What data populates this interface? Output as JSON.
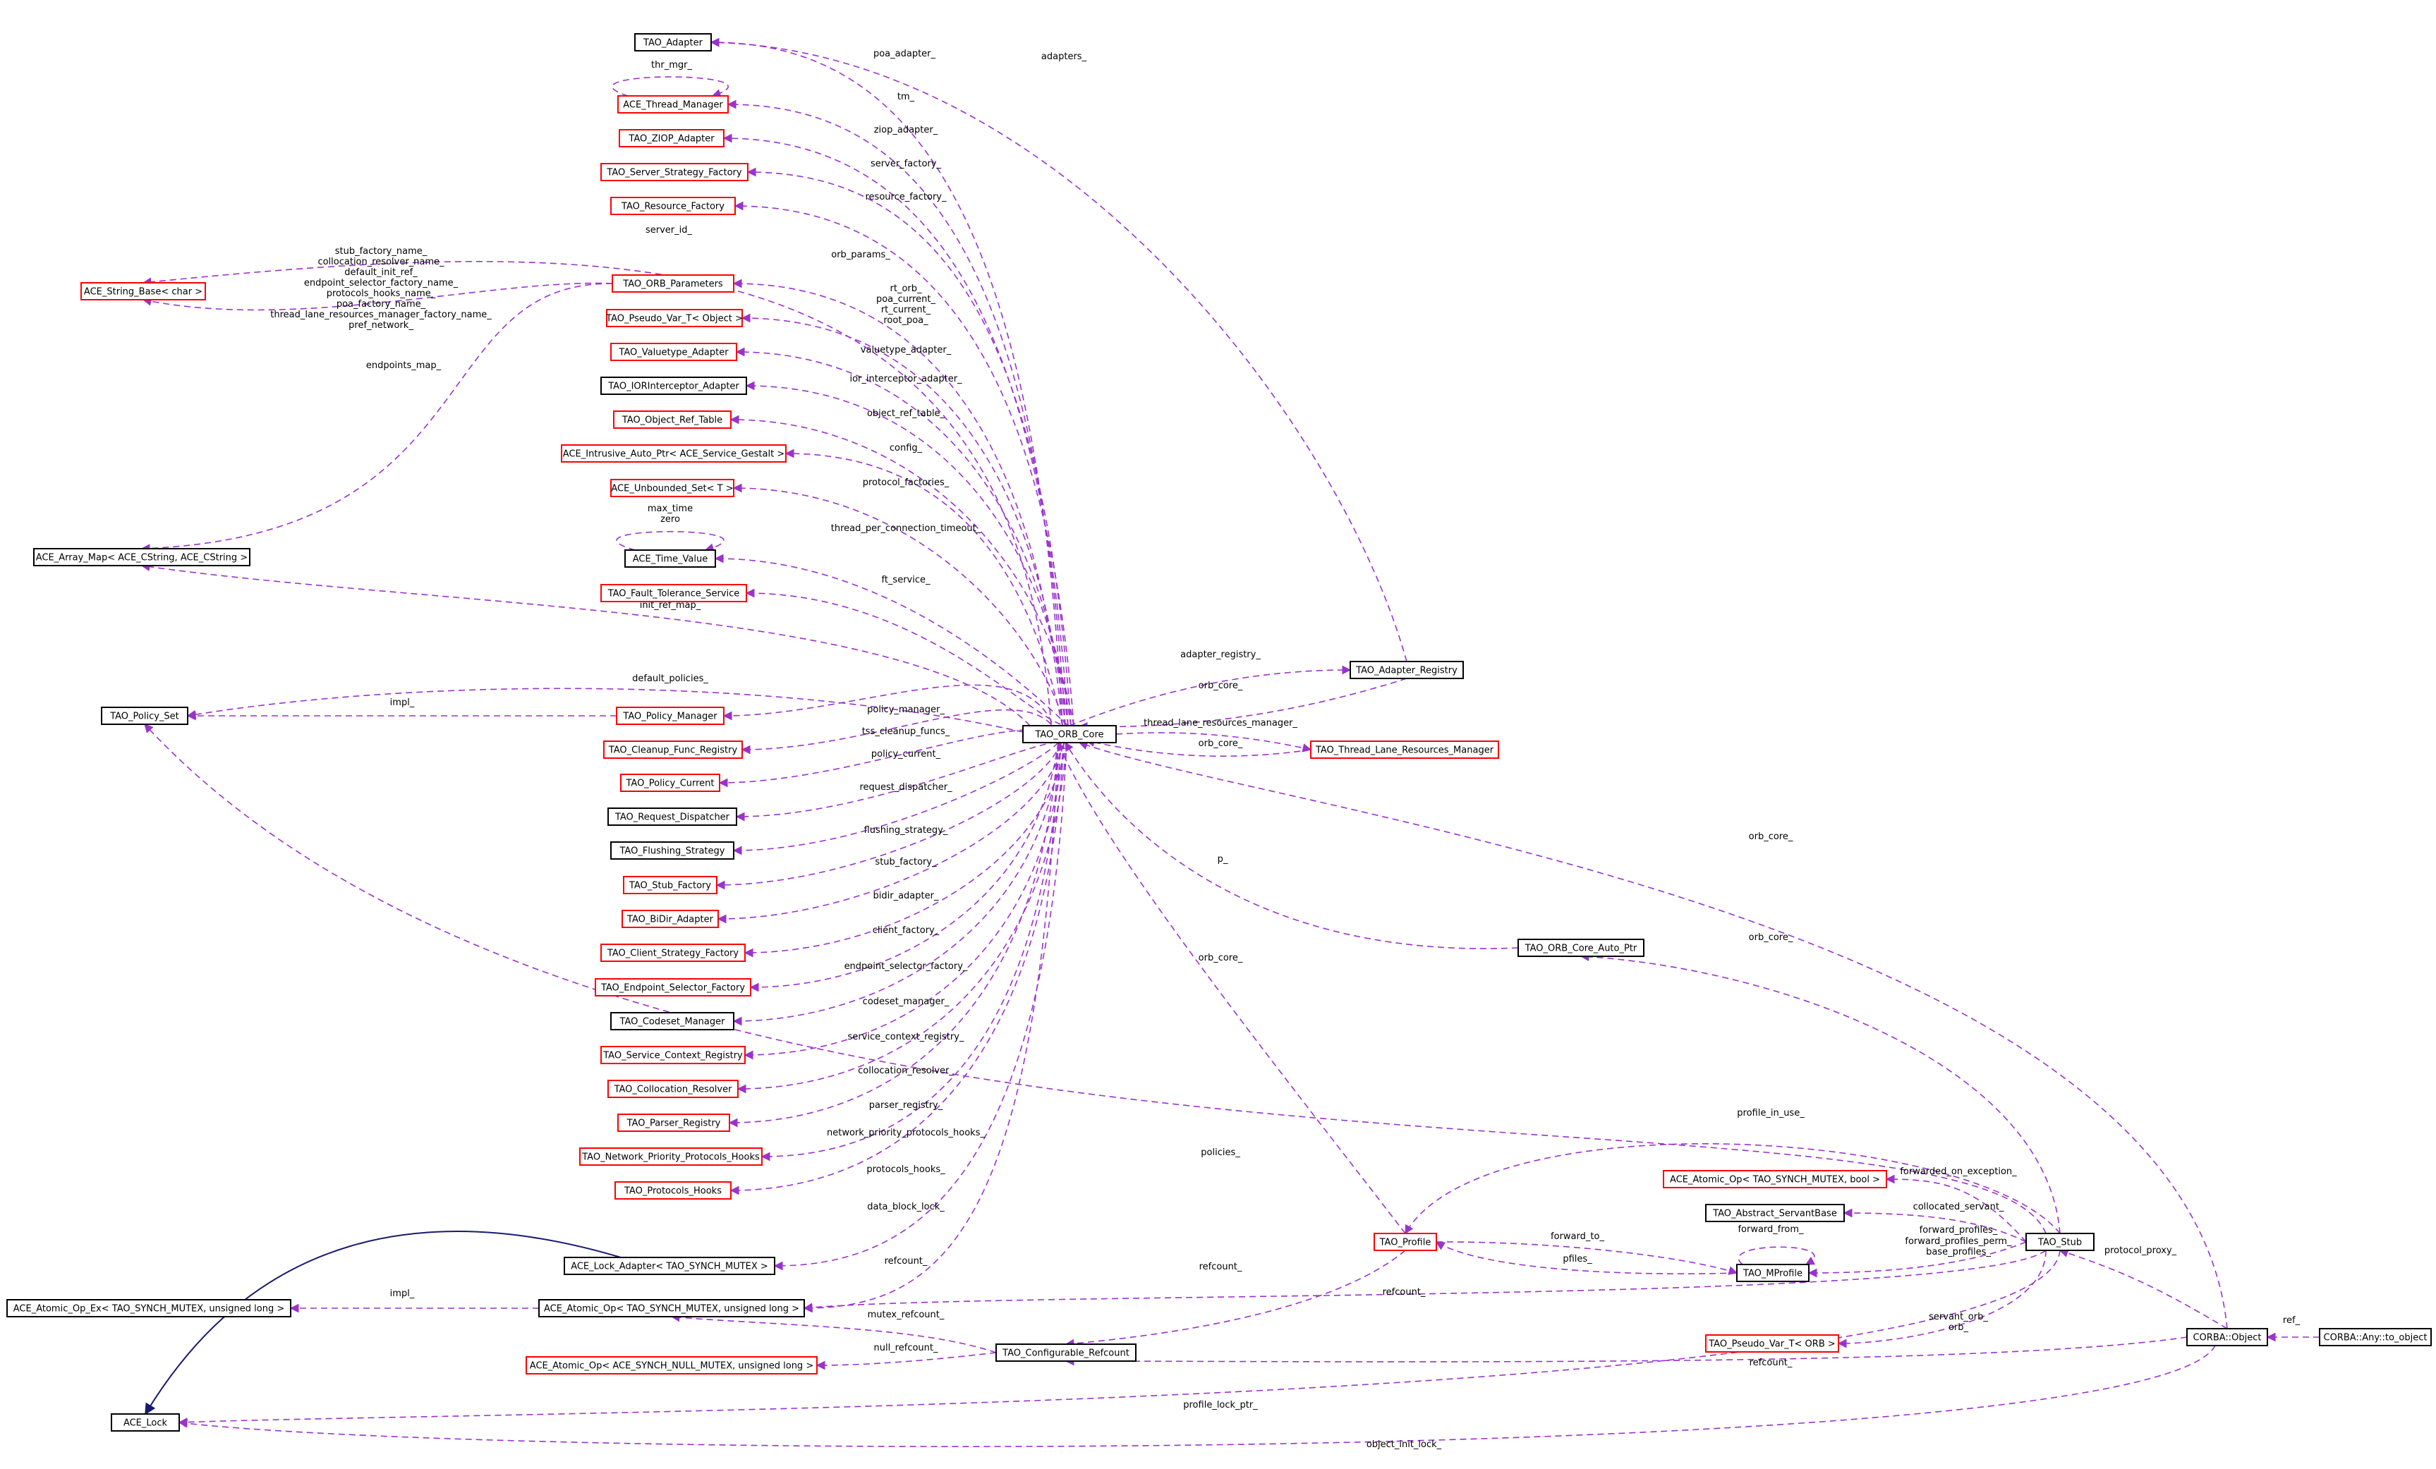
{
  "colors": {
    "edge": "#9a32cd",
    "inherit": "#191970",
    "red_border": "#ff0000",
    "black_border": "#000000",
    "selected_fill": "#bfbfbf"
  },
  "nodes": [
    {
      "id": "tao_adapter",
      "label": "TAO_Adapter",
      "border": "black"
    },
    {
      "id": "ace_thread_manager",
      "label": "ACE_Thread_Manager",
      "border": "red"
    },
    {
      "id": "tao_ziop_adapter",
      "label": "TAO_ZIOP_Adapter",
      "border": "red"
    },
    {
      "id": "tao_server_strategy_factory",
      "label": "TAO_Server_Strategy_Factory",
      "border": "red"
    },
    {
      "id": "tao_resource_factory",
      "label": "TAO_Resource_Factory",
      "border": "red"
    },
    {
      "id": "ace_string_base",
      "label": "ACE_String_Base< char >",
      "border": "red"
    },
    {
      "id": "tao_orb_parameters",
      "label": "TAO_ORB_Parameters",
      "border": "red"
    },
    {
      "id": "tao_pseudo_var_object",
      "label": "TAO_Pseudo_Var_T< Object >",
      "border": "red"
    },
    {
      "id": "tao_valuetype_adapter",
      "label": "TAO_Valuetype_Adapter",
      "border": "red"
    },
    {
      "id": "tao_iorinterceptor_adapter",
      "label": "TAO_IORInterceptor_Adapter",
      "border": "black"
    },
    {
      "id": "tao_object_ref_table",
      "label": "TAO_Object_Ref_Table",
      "border": "red"
    },
    {
      "id": "ace_intrusive_auto_ptr",
      "label": "ACE_Intrusive_Auto_Ptr< ACE_Service_Gestalt >",
      "border": "red"
    },
    {
      "id": "ace_unbounded_set",
      "label": "ACE_Unbounded_Set< T >",
      "border": "red"
    },
    {
      "id": "ace_array_map",
      "label": "ACE_Array_Map< ACE_CString, ACE_CString >",
      "border": "black"
    },
    {
      "id": "ace_time_value",
      "label": "ACE_Time_Value",
      "border": "black"
    },
    {
      "id": "tao_fault_tolerance_service",
      "label": "TAO_Fault_Tolerance_Service",
      "border": "red"
    },
    {
      "id": "tao_policy_set",
      "label": "TAO_Policy_Set",
      "border": "black"
    },
    {
      "id": "tao_policy_manager",
      "label": "TAO_Policy_Manager",
      "border": "red"
    },
    {
      "id": "tao_cleanup_func_registry",
      "label": "TAO_Cleanup_Func_Registry",
      "border": "red"
    },
    {
      "id": "tao_policy_current",
      "label": "TAO_Policy_Current",
      "border": "red"
    },
    {
      "id": "tao_request_dispatcher",
      "label": "TAO_Request_Dispatcher",
      "border": "black"
    },
    {
      "id": "tao_flushing_strategy",
      "label": "TAO_Flushing_Strategy",
      "border": "black"
    },
    {
      "id": "tao_stub_factory",
      "label": "TAO_Stub_Factory",
      "border": "red"
    },
    {
      "id": "tao_bidir_adapter",
      "label": "TAO_BiDir_Adapter",
      "border": "red"
    },
    {
      "id": "tao_client_strategy_factory",
      "label": "TAO_Client_Strategy_Factory",
      "border": "red"
    },
    {
      "id": "tao_endpoint_selector_factory",
      "label": "TAO_Endpoint_Selector_Factory",
      "border": "red"
    },
    {
      "id": "tao_codeset_manager",
      "label": "TAO_Codeset_Manager",
      "border": "black"
    },
    {
      "id": "tao_service_context_registry",
      "label": "TAO_Service_Context_Registry",
      "border": "red"
    },
    {
      "id": "tao_collocation_resolver",
      "label": "TAO_Collocation_Resolver",
      "border": "red"
    },
    {
      "id": "tao_parser_registry",
      "label": "TAO_Parser_Registry",
      "border": "red"
    },
    {
      "id": "tao_network_priority_protocols_hooks",
      "label": "TAO_Network_Priority_Protocols_Hooks",
      "border": "red"
    },
    {
      "id": "tao_protocols_hooks",
      "label": "TAO_Protocols_Hooks",
      "border": "red"
    },
    {
      "id": "ace_lock_adapter",
      "label": "ACE_Lock_Adapter< TAO_SYNCH_MUTEX >",
      "border": "black"
    },
    {
      "id": "ace_atomic_op_ex",
      "label": "ACE_Atomic_Op_Ex< TAO_SYNCH_MUTEX, unsigned long >",
      "border": "black"
    },
    {
      "id": "ace_atomic_op_ulong",
      "label": "ACE_Atomic_Op< TAO_SYNCH_MUTEX, unsigned long >",
      "border": "black"
    },
    {
      "id": "ace_atomic_op_null",
      "label": "ACE_Atomic_Op< ACE_SYNCH_NULL_MUTEX, unsigned long >",
      "border": "red"
    },
    {
      "id": "ace_lock",
      "label": "ACE_Lock",
      "border": "black"
    },
    {
      "id": "tao_orb_core",
      "label": "TAO_ORB_Core",
      "border": "black"
    },
    {
      "id": "tao_adapter_registry",
      "label": "TAO_Adapter_Registry",
      "border": "black"
    },
    {
      "id": "tao_thread_lane_resources_manager",
      "label": "TAO_Thread_Lane_Resources_Manager",
      "border": "red"
    },
    {
      "id": "tao_orb_core_auto_ptr",
      "label": "TAO_ORB_Core_Auto_Ptr",
      "border": "black"
    },
    {
      "id": "tao_profile",
      "label": "TAO_Profile",
      "border": "red"
    },
    {
      "id": "tao_configurable_refcount",
      "label": "TAO_Configurable_Refcount",
      "border": "black"
    },
    {
      "id": "ace_atomic_op_bool",
      "label": "ACE_Atomic_Op< TAO_SYNCH_MUTEX, bool >",
      "border": "red"
    },
    {
      "id": "tao_abstract_servantbase",
      "label": "TAO_Abstract_ServantBase",
      "border": "black"
    },
    {
      "id": "tao_mprofile",
      "label": "TAO_MProfile",
      "border": "black"
    },
    {
      "id": "tao_pseudo_var_orb",
      "label": "TAO_Pseudo_Var_T< ORB >",
      "border": "red"
    },
    {
      "id": "tao_stub",
      "label": "TAO_Stub",
      "border": "black"
    },
    {
      "id": "corba_object",
      "label": "CORBA::Object",
      "border": "black"
    },
    {
      "id": "corba_any_to_object",
      "label": "CORBA::Any::to_object",
      "border": "black",
      "selected": true
    }
  ],
  "edge_labels": [
    {
      "id": "poa_adapter",
      "text": "poa_adapter_"
    },
    {
      "id": "adapters",
      "text": "adapters_"
    },
    {
      "id": "thr_mgr",
      "text": "thr_mgr_"
    },
    {
      "id": "tm",
      "text": "tm_"
    },
    {
      "id": "ziop_adapter",
      "text": "ziop_adapter_"
    },
    {
      "id": "server_factory",
      "text": "server_factory_"
    },
    {
      "id": "resource_factory",
      "text": "resource_factory_"
    },
    {
      "id": "server_id",
      "text": "server_id_"
    },
    {
      "id": "orb_params",
      "text": "orb_params_"
    },
    {
      "id": "sb1",
      "text": "stub_factory_name_"
    },
    {
      "id": "sb2",
      "text": "collocation_resolver_name_"
    },
    {
      "id": "sb3",
      "text": "default_init_ref_"
    },
    {
      "id": "sb4",
      "text": "endpoint_selector_factory_name_"
    },
    {
      "id": "sb5",
      "text": "protocols_hooks_name_"
    },
    {
      "id": "sb6",
      "text": "poa_factory_name_"
    },
    {
      "id": "sb7",
      "text": "thread_lane_resources_manager_factory_name_"
    },
    {
      "id": "sb8",
      "text": "pref_network_"
    },
    {
      "id": "pv1",
      "text": "rt_orb_"
    },
    {
      "id": "pv2",
      "text": "poa_current_"
    },
    {
      "id": "pv3",
      "text": "rt_current_"
    },
    {
      "id": "pv4",
      "text": "root_poa_"
    },
    {
      "id": "endpoints_map",
      "text": "endpoints_map_"
    },
    {
      "id": "valuetype_adapter",
      "text": "valuetype_adapter_"
    },
    {
      "id": "ior_interceptor_adapter",
      "text": "ior_interceptor_adapter_"
    },
    {
      "id": "object_ref_table",
      "text": "object_ref_table_"
    },
    {
      "id": "config",
      "text": "config_"
    },
    {
      "id": "protocol_factories",
      "text": "protocol_factories_"
    },
    {
      "id": "max_time",
      "text": "max_time"
    },
    {
      "id": "zero",
      "text": "zero"
    },
    {
      "id": "thread_per_connection_timeout",
      "text": "thread_per_connection_timeout_"
    },
    {
      "id": "ft_service",
      "text": "ft_service_"
    },
    {
      "id": "init_ref_map",
      "text": "init_ref_map_"
    },
    {
      "id": "default_policies",
      "text": "default_policies_"
    },
    {
      "id": "impl1",
      "text": "impl_"
    },
    {
      "id": "policy_manager",
      "text": "policy_manager_"
    },
    {
      "id": "tss_cleanup_funcs",
      "text": "tss_cleanup_funcs_"
    },
    {
      "id": "policy_current",
      "text": "policy_current_"
    },
    {
      "id": "request_dispatcher",
      "text": "request_dispatcher_"
    },
    {
      "id": "flushing_strategy",
      "text": "flushing_strategy_"
    },
    {
      "id": "stub_factory",
      "text": "stub_factory_"
    },
    {
      "id": "bidir_adapter",
      "text": "bidir_adapter_"
    },
    {
      "id": "client_factory",
      "text": "client_factory_"
    },
    {
      "id": "endpoint_selector_factory",
      "text": "endpoint_selector_factory_"
    },
    {
      "id": "codeset_manager",
      "text": "codeset_manager_"
    },
    {
      "id": "service_context_registry",
      "text": "service_context_registry_"
    },
    {
      "id": "collocation_resolver",
      "text": "collocation_resolver_"
    },
    {
      "id": "parser_registry",
      "text": "parser_registry_"
    },
    {
      "id": "network_priority_protocols_hooks",
      "text": "network_priority_protocols_hooks_"
    },
    {
      "id": "protocols_hooks",
      "text": "protocols_hooks_"
    },
    {
      "id": "data_block_lock",
      "text": "data_block_lock_"
    },
    {
      "id": "refcount1",
      "text": "refcount_"
    },
    {
      "id": "impl2",
      "text": "impl_"
    },
    {
      "id": "mutex_refcount",
      "text": "mutex_refcount_"
    },
    {
      "id": "null_refcount",
      "text": "null_refcount_"
    },
    {
      "id": "adapter_registry",
      "text": "adapter_registry_"
    },
    {
      "id": "orb_core1",
      "text": "orb_core_"
    },
    {
      "id": "thread_lane_resources_manager",
      "text": "thread_lane_resources_manager_"
    },
    {
      "id": "orb_core2",
      "text": "orb_core_"
    },
    {
      "id": "orb_core3",
      "text": "orb_core_"
    },
    {
      "id": "p",
      "text": "p_"
    },
    {
      "id": "orb_core4",
      "text": "orb_core_"
    },
    {
      "id": "orb_core5",
      "text": "orb_core_"
    },
    {
      "id": "profile_in_use",
      "text": "profile_in_use_"
    },
    {
      "id": "policies",
      "text": "policies_"
    },
    {
      "id": "forwarded_on_exception",
      "text": "forwarded_on_exception_"
    },
    {
      "id": "collocated_servant",
      "text": "collocated_servant_"
    },
    {
      "id": "forward_from",
      "text": "forward_from_"
    },
    {
      "id": "forward_to",
      "text": "forward_to_"
    },
    {
      "id": "pfiles",
      "text": "pfiles_"
    },
    {
      "id": "fp1",
      "text": "forward_profiles_"
    },
    {
      "id": "fp2",
      "text": "forward_profiles_perm_"
    },
    {
      "id": "fp3",
      "text": "base_profiles_"
    },
    {
      "id": "protocol_proxy",
      "text": "protocol_proxy_"
    },
    {
      "id": "refcount2",
      "text": "refcount_"
    },
    {
      "id": "refcount3",
      "text": "refcount_"
    },
    {
      "id": "servant_orb",
      "text": "servant_orb_"
    },
    {
      "id": "orb",
      "text": "orb_"
    },
    {
      "id": "ref",
      "text": "ref_"
    },
    {
      "id": "refcount4",
      "text": "refcount_"
    },
    {
      "id": "profile_lock_ptr",
      "text": "profile_lock_ptr_"
    },
    {
      "id": "object_init_lock",
      "text": "object_init_lock_"
    }
  ]
}
